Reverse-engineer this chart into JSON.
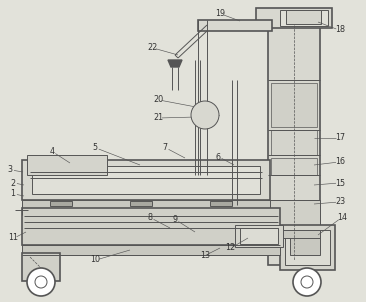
{
  "bg": "#e2e2da",
  "lc": "#555555",
  "lw": 0.7,
  "tlw": 1.2,
  "fig_w": 3.66,
  "fig_h": 3.02,
  "label_fs": 5.8,
  "label_c": "#333333"
}
